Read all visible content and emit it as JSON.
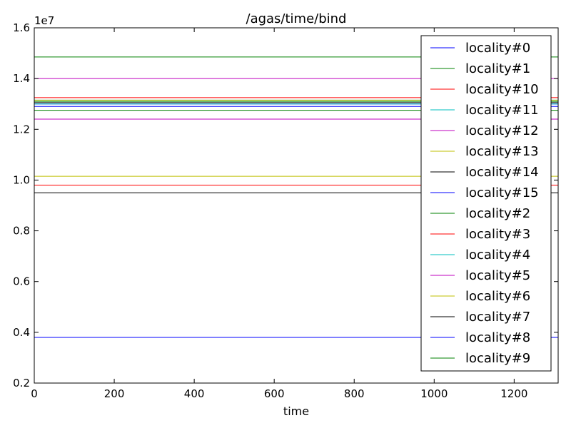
{
  "chart_data": {
    "type": "line",
    "title": "/agas/time/bind",
    "xlabel": "time",
    "ylabel": "",
    "y_scale_label": "1e7",
    "xlim": [
      0,
      1310
    ],
    "ylim": [
      0.2,
      1.6
    ],
    "x_ticks": [
      0,
      200,
      400,
      600,
      800,
      1000,
      1200
    ],
    "y_ticks": [
      0.2,
      0.4,
      0.6,
      0.8,
      1.0,
      1.2,
      1.4,
      1.6
    ],
    "legend_position": "top-right",
    "grid": false,
    "series": [
      {
        "name": "locality#0",
        "color": "#0000ff",
        "values": [
          1.29,
          1.29
        ]
      },
      {
        "name": "locality#1",
        "color": "#008000",
        "values": [
          1.485,
          1.485
        ]
      },
      {
        "name": "locality#10",
        "color": "#ff0000",
        "values": [
          1.325,
          1.325
        ]
      },
      {
        "name": "locality#11",
        "color": "#00bfbf",
        "values": [
          1.315,
          1.315
        ]
      },
      {
        "name": "locality#12",
        "color": "#bf00bf",
        "values": [
          1.24,
          1.24
        ]
      },
      {
        "name": "locality#13",
        "color": "#bfbf00",
        "values": [
          1.015,
          1.015
        ]
      },
      {
        "name": "locality#14",
        "color": "#000000",
        "values": [
          1.305,
          1.305
        ]
      },
      {
        "name": "locality#15",
        "color": "#0000ff",
        "values": [
          1.3,
          1.3
        ]
      },
      {
        "name": "locality#2",
        "color": "#008000",
        "values": [
          1.275,
          1.275
        ]
      },
      {
        "name": "locality#3",
        "color": "#ff0000",
        "values": [
          0.98,
          0.98
        ]
      },
      {
        "name": "locality#4",
        "color": "#00bfbf",
        "values": [
          1.3,
          1.3
        ]
      },
      {
        "name": "locality#5",
        "color": "#bf00bf",
        "values": [
          1.4,
          1.4
        ]
      },
      {
        "name": "locality#6",
        "color": "#bfbf00",
        "values": [
          1.315,
          1.315
        ]
      },
      {
        "name": "locality#7",
        "color": "#000000",
        "values": [
          0.95,
          0.95
        ]
      },
      {
        "name": "locality#8",
        "color": "#0000ff",
        "values": [
          0.38,
          0.38
        ]
      },
      {
        "name": "locality#9",
        "color": "#008000",
        "values": [
          1.31,
          1.31
        ]
      }
    ],
    "x": [
      0,
      1310
    ]
  }
}
